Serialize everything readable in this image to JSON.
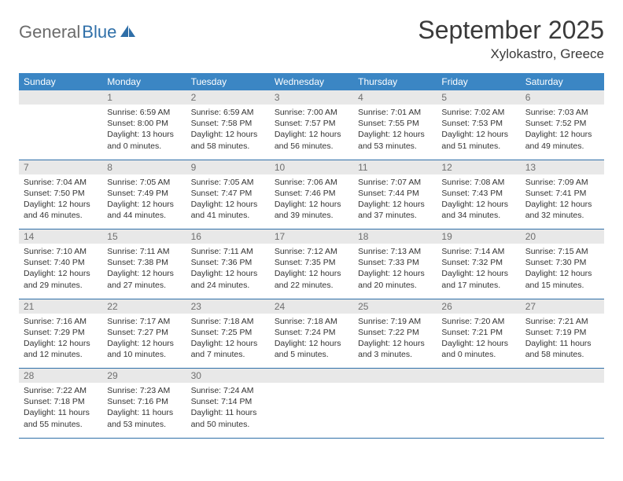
{
  "brand": {
    "part1": "General",
    "part2": "Blue"
  },
  "title": "September 2025",
  "location": "Xylokastro, Greece",
  "colors": {
    "header_bg": "#3b86c4",
    "header_fg": "#ffffff",
    "daynum_bg": "#e8e8e8",
    "daynum_fg": "#6f6f6f",
    "row_divider": "#2f6fa8",
    "text": "#333333",
    "logo_grey": "#6b6b6b",
    "logo_blue": "#2f6fa8",
    "page_bg": "#ffffff"
  },
  "typography": {
    "title_fontsize": 32,
    "location_fontsize": 17,
    "weekday_fontsize": 12,
    "daynum_fontsize": 12,
    "cell_fontsize": 10.5
  },
  "weekdays": [
    "Sunday",
    "Monday",
    "Tuesday",
    "Wednesday",
    "Thursday",
    "Friday",
    "Saturday"
  ],
  "weeks": [
    {
      "nums": [
        "",
        "1",
        "2",
        "3",
        "4",
        "5",
        "6"
      ],
      "cells": [
        null,
        {
          "sunrise": "Sunrise: 6:59 AM",
          "sunset": "Sunset: 8:00 PM",
          "daylight": "Daylight: 13 hours and 0 minutes."
        },
        {
          "sunrise": "Sunrise: 6:59 AM",
          "sunset": "Sunset: 7:58 PM",
          "daylight": "Daylight: 12 hours and 58 minutes."
        },
        {
          "sunrise": "Sunrise: 7:00 AM",
          "sunset": "Sunset: 7:57 PM",
          "daylight": "Daylight: 12 hours and 56 minutes."
        },
        {
          "sunrise": "Sunrise: 7:01 AM",
          "sunset": "Sunset: 7:55 PM",
          "daylight": "Daylight: 12 hours and 53 minutes."
        },
        {
          "sunrise": "Sunrise: 7:02 AM",
          "sunset": "Sunset: 7:53 PM",
          "daylight": "Daylight: 12 hours and 51 minutes."
        },
        {
          "sunrise": "Sunrise: 7:03 AM",
          "sunset": "Sunset: 7:52 PM",
          "daylight": "Daylight: 12 hours and 49 minutes."
        }
      ]
    },
    {
      "nums": [
        "7",
        "8",
        "9",
        "10",
        "11",
        "12",
        "13"
      ],
      "cells": [
        {
          "sunrise": "Sunrise: 7:04 AM",
          "sunset": "Sunset: 7:50 PM",
          "daylight": "Daylight: 12 hours and 46 minutes."
        },
        {
          "sunrise": "Sunrise: 7:05 AM",
          "sunset": "Sunset: 7:49 PM",
          "daylight": "Daylight: 12 hours and 44 minutes."
        },
        {
          "sunrise": "Sunrise: 7:05 AM",
          "sunset": "Sunset: 7:47 PM",
          "daylight": "Daylight: 12 hours and 41 minutes."
        },
        {
          "sunrise": "Sunrise: 7:06 AM",
          "sunset": "Sunset: 7:46 PM",
          "daylight": "Daylight: 12 hours and 39 minutes."
        },
        {
          "sunrise": "Sunrise: 7:07 AM",
          "sunset": "Sunset: 7:44 PM",
          "daylight": "Daylight: 12 hours and 37 minutes."
        },
        {
          "sunrise": "Sunrise: 7:08 AM",
          "sunset": "Sunset: 7:43 PM",
          "daylight": "Daylight: 12 hours and 34 minutes."
        },
        {
          "sunrise": "Sunrise: 7:09 AM",
          "sunset": "Sunset: 7:41 PM",
          "daylight": "Daylight: 12 hours and 32 minutes."
        }
      ]
    },
    {
      "nums": [
        "14",
        "15",
        "16",
        "17",
        "18",
        "19",
        "20"
      ],
      "cells": [
        {
          "sunrise": "Sunrise: 7:10 AM",
          "sunset": "Sunset: 7:40 PM",
          "daylight": "Daylight: 12 hours and 29 minutes."
        },
        {
          "sunrise": "Sunrise: 7:11 AM",
          "sunset": "Sunset: 7:38 PM",
          "daylight": "Daylight: 12 hours and 27 minutes."
        },
        {
          "sunrise": "Sunrise: 7:11 AM",
          "sunset": "Sunset: 7:36 PM",
          "daylight": "Daylight: 12 hours and 24 minutes."
        },
        {
          "sunrise": "Sunrise: 7:12 AM",
          "sunset": "Sunset: 7:35 PM",
          "daylight": "Daylight: 12 hours and 22 minutes."
        },
        {
          "sunrise": "Sunrise: 7:13 AM",
          "sunset": "Sunset: 7:33 PM",
          "daylight": "Daylight: 12 hours and 20 minutes."
        },
        {
          "sunrise": "Sunrise: 7:14 AM",
          "sunset": "Sunset: 7:32 PM",
          "daylight": "Daylight: 12 hours and 17 minutes."
        },
        {
          "sunrise": "Sunrise: 7:15 AM",
          "sunset": "Sunset: 7:30 PM",
          "daylight": "Daylight: 12 hours and 15 minutes."
        }
      ]
    },
    {
      "nums": [
        "21",
        "22",
        "23",
        "24",
        "25",
        "26",
        "27"
      ],
      "cells": [
        {
          "sunrise": "Sunrise: 7:16 AM",
          "sunset": "Sunset: 7:29 PM",
          "daylight": "Daylight: 12 hours and 12 minutes."
        },
        {
          "sunrise": "Sunrise: 7:17 AM",
          "sunset": "Sunset: 7:27 PM",
          "daylight": "Daylight: 12 hours and 10 minutes."
        },
        {
          "sunrise": "Sunrise: 7:18 AM",
          "sunset": "Sunset: 7:25 PM",
          "daylight": "Daylight: 12 hours and 7 minutes."
        },
        {
          "sunrise": "Sunrise: 7:18 AM",
          "sunset": "Sunset: 7:24 PM",
          "daylight": "Daylight: 12 hours and 5 minutes."
        },
        {
          "sunrise": "Sunrise: 7:19 AM",
          "sunset": "Sunset: 7:22 PM",
          "daylight": "Daylight: 12 hours and 3 minutes."
        },
        {
          "sunrise": "Sunrise: 7:20 AM",
          "sunset": "Sunset: 7:21 PM",
          "daylight": "Daylight: 12 hours and 0 minutes."
        },
        {
          "sunrise": "Sunrise: 7:21 AM",
          "sunset": "Sunset: 7:19 PM",
          "daylight": "Daylight: 11 hours and 58 minutes."
        }
      ]
    },
    {
      "nums": [
        "28",
        "29",
        "30",
        "",
        "",
        "",
        ""
      ],
      "cells": [
        {
          "sunrise": "Sunrise: 7:22 AM",
          "sunset": "Sunset: 7:18 PM",
          "daylight": "Daylight: 11 hours and 55 minutes."
        },
        {
          "sunrise": "Sunrise: 7:23 AM",
          "sunset": "Sunset: 7:16 PM",
          "daylight": "Daylight: 11 hours and 53 minutes."
        },
        {
          "sunrise": "Sunrise: 7:24 AM",
          "sunset": "Sunset: 7:14 PM",
          "daylight": "Daylight: 11 hours and 50 minutes."
        },
        null,
        null,
        null,
        null
      ]
    }
  ]
}
